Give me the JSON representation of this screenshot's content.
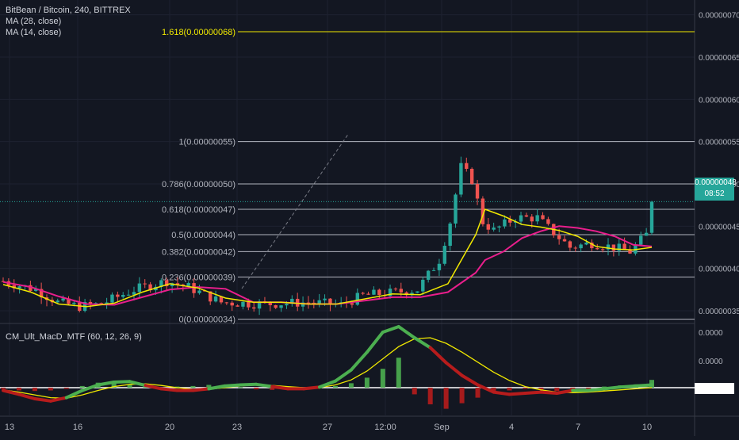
{
  "legend": {
    "symbol": "BitBean / Bitcoin, 240, BITTREX",
    "ma28": "MA (28, close)",
    "ma14": "MA (14, close)"
  },
  "macd_legend": "CM_Ult_MacD_MTF (60, 12, 26, 9)",
  "price_badge": {
    "value": "0.00000048",
    "time": "08:52"
  },
  "colors": {
    "background": "#131722",
    "up": "#26a69a",
    "down": "#ef5350",
    "ma28": "#e91e8c",
    "ma14": "#f0e800",
    "fib": "#b2b5be",
    "fib_ext": "#f0e800",
    "macd_bull": "#4caf50",
    "macd_bear": "#b71c1c",
    "signal": "#f0e800"
  },
  "chart_data": [
    {
      "type": "candlestick",
      "title": "BitBean / Bitcoin, 240, BITTREX",
      "y_axis_ticks": [
        "0.00000070",
        "0.00000065",
        "0.00000060",
        "0.00000055",
        "0.00000050",
        "0.00000045",
        "0.00000040",
        "0.00000035"
      ],
      "ylim": [
        3.35e-07,
        7.1e-07
      ],
      "x_axis_ticks": [
        "13",
        "16",
        "20",
        "23",
        "27",
        "12:00",
        "Sep",
        "4",
        "7",
        "10"
      ],
      "last_price": 4.8e-07,
      "fib_levels": [
        {
          "label": "1.618(0.00000068)",
          "value": 6.8e-07
        },
        {
          "label": "1(0.00000055)",
          "value": 5.5e-07
        },
        {
          "label": "0.786(0.00000050)",
          "value": 5e-07
        },
        {
          "label": "0.618(0.00000047)",
          "value": 4.7e-07
        },
        {
          "label": "0.5(0.00000044)",
          "value": 4.4e-07
        },
        {
          "label": "0.382(0.00000042)",
          "value": 4.2e-07
        },
        {
          "label": "0.236(0.00000039)",
          "value": 3.9e-07
        },
        {
          "label": "0(0.00000034)",
          "value": 3.4e-07
        }
      ],
      "series": [
        {
          "name": "MA (28, close)",
          "x": [
            0,
            3,
            6,
            9,
            12,
            15,
            18,
            21,
            24,
            27,
            30,
            33,
            36,
            39,
            42,
            45,
            48,
            51,
            52,
            54,
            56,
            58,
            60,
            62,
            64,
            66,
            68,
            70
          ],
          "values": [
            3.84e-07,
            3.78e-07,
            3.67e-07,
            3.58e-07,
            3.57e-07,
            3.66e-07,
            3.75e-07,
            3.78e-07,
            3.76e-07,
            3.6e-07,
            3.6e-07,
            3.58e-07,
            3.58e-07,
            3.62e-07,
            3.66e-07,
            3.66e-07,
            3.72e-07,
            3.95e-07,
            4.1e-07,
            4.2e-07,
            4.36e-07,
            4.44e-07,
            4.5e-07,
            4.48e-07,
            4.44e-07,
            4.38e-07,
            4.28e-07,
            4.26e-07
          ]
        },
        {
          "name": "MA (14, close)",
          "x": [
            0,
            3,
            6,
            9,
            12,
            15,
            18,
            21,
            24,
            27,
            30,
            33,
            36,
            39,
            42,
            45,
            48,
            51,
            52,
            54,
            56,
            58,
            60,
            62,
            64,
            66,
            68,
            70
          ],
          "values": [
            3.81e-07,
            3.72e-07,
            3.58e-07,
            3.55e-07,
            3.59e-07,
            3.72e-07,
            3.82e-07,
            3.77e-07,
            3.65e-07,
            3.6e-07,
            3.6e-07,
            3.58e-07,
            3.58e-07,
            3.64e-07,
            3.7e-07,
            3.69e-07,
            3.82e-07,
            4.4e-07,
            4.7e-07,
            4.62e-07,
            4.52e-07,
            4.49e-07,
            4.45e-07,
            4.38e-07,
            4.26e-07,
            4.23e-07,
            4.22e-07,
            4.25e-07
          ]
        }
      ]
    },
    {
      "type": "bar",
      "title": "CM_Ult_MacD_MTF (60, 12, 26, 9)",
      "y_axis_ticks": [
        "0.0000",
        "0.0000",
        "0.0000"
      ],
      "histogram": [
        -0.02,
        -0.05,
        -0.06,
        -0.05,
        -0.02,
        0.03,
        0.09,
        0.11,
        0.05,
        0.02,
        -0.01,
        0.02,
        0.03,
        0.05,
        0.02,
        0.01,
        -0.03,
        -0.04,
        -0.02,
        -0.01,
        0.0,
        0.03,
        0.08,
        0.18,
        0.34,
        0.54,
        -0.12,
        -0.3,
        -0.38,
        -0.28,
        -0.18,
        -0.09,
        -0.05,
        -0.02,
        -0.04,
        -0.06,
        -0.03,
        -0.02,
        0.02,
        0.04,
        0.06,
        0.14
      ],
      "macd_line": [
        -0.05,
        -0.12,
        -0.2,
        -0.24,
        -0.18,
        -0.05,
        0.05,
        0.1,
        0.11,
        0.04,
        -0.02,
        -0.05,
        -0.05,
        -0.02,
        0.03,
        0.05,
        0.06,
        0.02,
        -0.02,
        -0.02,
        0.01,
        0.12,
        0.32,
        0.64,
        1.0,
        1.1,
        0.9,
        0.72,
        0.45,
        0.22,
        0.05,
        -0.08,
        -0.12,
        -0.1,
        -0.08,
        -0.1,
        -0.05,
        -0.05,
        -0.02,
        0.01,
        0.03,
        0.05
      ],
      "signal_line": [
        -0.04,
        -0.08,
        -0.13,
        -0.18,
        -0.19,
        -0.13,
        -0.05,
        0.02,
        0.06,
        0.07,
        0.04,
        0.0,
        -0.03,
        -0.03,
        0.0,
        0.03,
        0.05,
        0.04,
        0.02,
        0.0,
        0.0,
        0.05,
        0.14,
        0.3,
        0.52,
        0.74,
        0.88,
        0.9,
        0.8,
        0.64,
        0.46,
        0.28,
        0.13,
        0.02,
        -0.04,
        -0.08,
        -0.09,
        -0.08,
        -0.06,
        -0.04,
        -0.02,
        0.0
      ]
    }
  ]
}
